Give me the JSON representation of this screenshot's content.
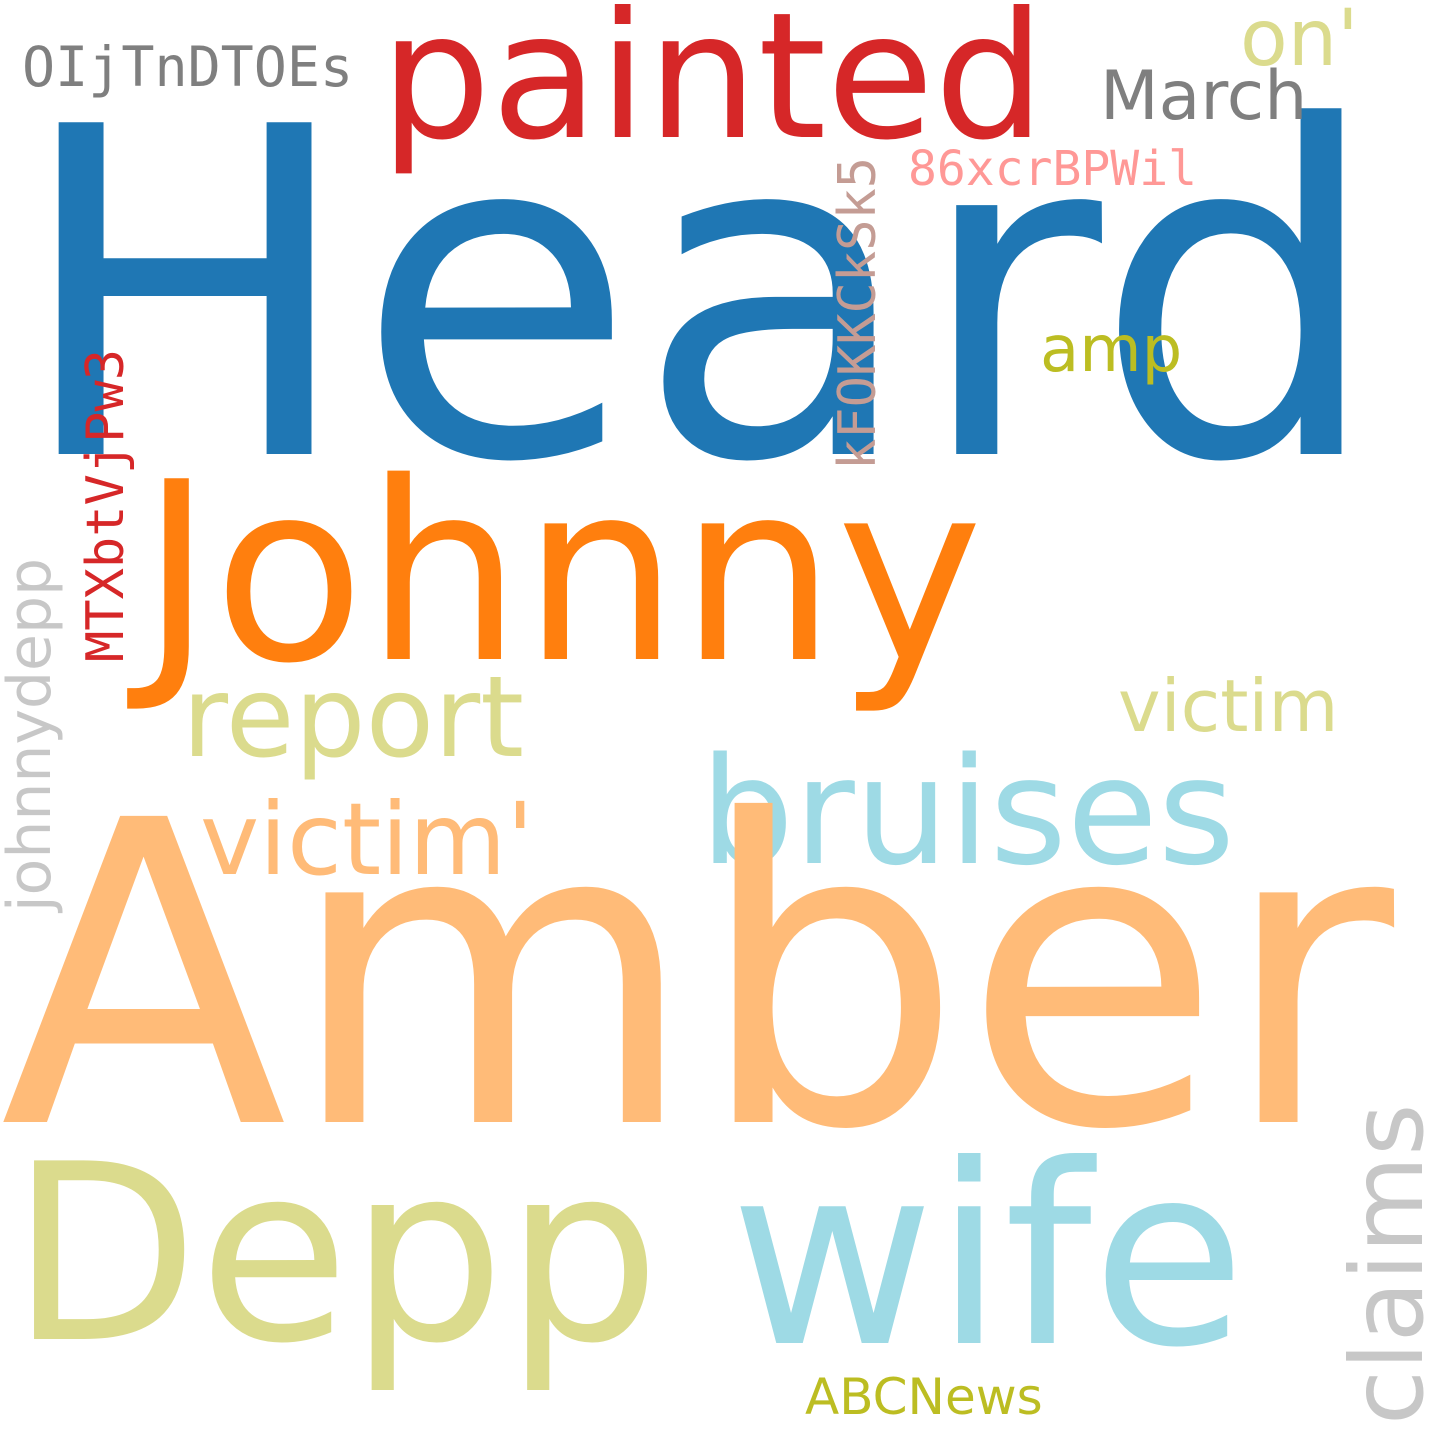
{
  "words": {
    "heard": {
      "text": "Heard",
      "color": "#1f77b4"
    },
    "amber": {
      "text": "Amber",
      "color": "#ffbb78"
    },
    "johnny": {
      "text": "Johnny",
      "color": "#ff7f0e"
    },
    "painted": {
      "text": "painted",
      "color": "#d62728"
    },
    "depp": {
      "text": "Depp",
      "color": "#dbdb8d"
    },
    "wife": {
      "text": "wife",
      "color": "#9edae5"
    },
    "bruises": {
      "text": "bruises",
      "color": "#9edae5"
    },
    "report": {
      "text": "report",
      "color": "#dbdb8d"
    },
    "victim_q": {
      "text": "victim'",
      "color": "#ffbb78"
    },
    "victim": {
      "text": "victim",
      "color": "#dbdb8d"
    },
    "claims": {
      "text": "claims",
      "color": "#c7c7c7"
    },
    "johnnydepp": {
      "text": "johnnydepp",
      "color": "#c7c7c7"
    },
    "march": {
      "text": "March",
      "color": "#7f7f7f"
    },
    "on": {
      "text": "on'",
      "color": "#dbdb8d"
    },
    "amp": {
      "text": "amp",
      "color": "#bcbd22"
    },
    "token1": {
      "text": "OIjTnDTOEs",
      "color": "#7f7f7f"
    },
    "token2": {
      "text": "86xcrBPWil",
      "color": "#ff9896"
    },
    "token3": {
      "text": "kFOKKCkSk5",
      "color": "#c49c94"
    },
    "token4": {
      "text": "MTXbtVjPw3",
      "color": "#d62728"
    },
    "abcnews": {
      "text": "ABCNews",
      "color": "#bcbd22"
    }
  }
}
